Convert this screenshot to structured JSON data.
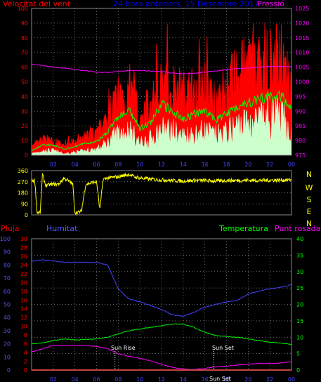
{
  "chart_data": [
    {
      "type": "line",
      "title": "24 hora anteriors, 15 Desembre 2017",
      "left_title": "Velocitat del vent",
      "right_title": "Pressió",
      "x_ticks": [
        "02",
        "04",
        "06",
        "08",
        "10",
        "12",
        "14",
        "16",
        "18",
        "20",
        "22",
        "00"
      ],
      "x_range": [
        0,
        24
      ],
      "y_left_ticks": [
        "0",
        "10",
        "20",
        "30",
        "40",
        "50",
        "60",
        "70",
        "80",
        "90",
        "100"
      ],
      "y_left_range": [
        0,
        100
      ],
      "y_right_ticks": [
        "975",
        "980",
        "985",
        "990",
        "995",
        "1000",
        "1005",
        "1010",
        "1015",
        "1020",
        "1025"
      ],
      "y_right_range": [
        975,
        1025
      ],
      "colors": {
        "gust": "#ff0000",
        "avg": "#00ff00",
        "speed": "#ccffcc",
        "pressure": "#ff00ff",
        "frame": "#888888"
      },
      "series": [
        {
          "name": "Pressió",
          "x": [
            0,
            1,
            2,
            3,
            4,
            5,
            6,
            7,
            8,
            9,
            10,
            11,
            12,
            13,
            14,
            15,
            16,
            17,
            18,
            19,
            20,
            21,
            22,
            23,
            24
          ],
          "values": [
            1006,
            1005.6,
            1005,
            1004.6,
            1004.2,
            1003.8,
            1003.3,
            1003.2,
            1003.5,
            1003.8,
            1003.8,
            1003.7,
            1003.5,
            1003,
            1002.7,
            1002.9,
            1003.3,
            1003.7,
            1004.1,
            1004.5,
            1004.7,
            1005,
            1005.2,
            1005.2,
            1005.1
          ]
        },
        {
          "name": "gust",
          "x": [
            0,
            1,
            2,
            3,
            4,
            5,
            6,
            7,
            8,
            9,
            10,
            11,
            12,
            13,
            14,
            15,
            16,
            17,
            18,
            19,
            20,
            21,
            22,
            23,
            24
          ],
          "values": [
            5,
            10,
            9,
            6,
            9,
            12,
            14,
            24,
            40,
            45,
            28,
            33,
            55,
            46,
            40,
            43,
            46,
            40,
            43,
            53,
            58,
            60,
            62,
            63,
            50
          ]
        },
        {
          "name": "avg",
          "x": [
            0,
            1,
            2,
            3,
            4,
            5,
            6,
            7,
            8,
            9,
            10,
            11,
            12,
            13,
            14,
            15,
            16,
            17,
            18,
            19,
            20,
            21,
            22,
            23,
            24
          ],
          "values": [
            3,
            7,
            7,
            4,
            6,
            8,
            9,
            16,
            26,
            30,
            18,
            22,
            35,
            30,
            25,
            28,
            30,
            24,
            28,
            33,
            36,
            38,
            40,
            40,
            33
          ]
        },
        {
          "name": "speed",
          "x": [
            0,
            1,
            2,
            3,
            4,
            5,
            6,
            7,
            8,
            9,
            10,
            11,
            12,
            13,
            14,
            15,
            16,
            17,
            18,
            19,
            20,
            21,
            22,
            23,
            24
          ],
          "values": [
            1,
            3,
            3,
            1,
            2,
            3,
            4,
            8,
            15,
            17,
            8,
            11,
            17,
            16,
            13,
            14,
            16,
            13,
            15,
            20,
            22,
            23,
            26,
            25,
            16
          ]
        }
      ]
    },
    {
      "type": "line",
      "x_ticks": [],
      "y_ticks": [
        "360",
        "270",
        "180",
        "90",
        "0"
      ],
      "y_range": [
        0,
        360
      ],
      "right_labels": [
        "N",
        "W",
        "S",
        "E",
        "N"
      ],
      "colors": {
        "dir": "#ffff00",
        "text": "#ffff00"
      },
      "series": [
        {
          "name": "direction",
          "x": [
            0,
            0.3,
            0.5,
            0.8,
            1.0,
            1.3,
            2.0,
            2.5,
            3.0,
            3.5,
            3.8,
            4.0,
            4.3,
            4.6,
            5.0,
            5.5,
            6.0,
            6.3,
            6.6,
            7.0,
            8.0,
            8.5,
            9.0,
            9.5,
            10.0,
            11.0,
            12.0,
            13.0,
            14.0,
            15.0,
            16.0,
            17.0,
            18.0,
            19.0,
            20.0,
            21.0,
            22.0,
            23.0,
            24.0
          ],
          "values": [
            280,
            280,
            20,
            20,
            330,
            240,
            250,
            250,
            300,
            270,
            250,
            20,
            20,
            30,
            250,
            260,
            270,
            40,
            290,
            300,
            310,
            320,
            330,
            310,
            300,
            290,
            285,
            280,
            275,
            280,
            280,
            275,
            280,
            280,
            282,
            280,
            282,
            283,
            285
          ]
        }
      ]
    },
    {
      "type": "line",
      "left_title": "Pluja",
      "left2_title": "Humitat",
      "right_title": "Temperatura",
      "right2_title": "Punt rosada",
      "annotations": [
        "Sun Rise",
        "Sun Set"
      ],
      "x_ticks": [
        "02",
        "04",
        "06",
        "08",
        "10",
        "12",
        "14",
        "16",
        "18",
        "20",
        "22",
        "00"
      ],
      "x_range": [
        0,
        24
      ],
      "y_rain_ticks": [
        "0",
        "10",
        "20",
        "30",
        "40",
        "50",
        "60",
        "70",
        "80",
        "90",
        "100"
      ],
      "y_hum_ticks": [
        "0",
        "2",
        "4",
        "6",
        "8",
        "10",
        "12",
        "14",
        "16",
        "18",
        "20",
        "22",
        "24",
        "26",
        "28",
        "30"
      ],
      "y_temp_ticks": [
        "0",
        "5",
        "10",
        "15",
        "20",
        "25",
        "30",
        "35",
        "40"
      ],
      "y_temp_range": [
        0,
        40
      ],
      "colors": {
        "rain": "#ff0000",
        "humidity": "#4444ff",
        "temperature": "#00ff00",
        "dewpoint": "#ff00ff",
        "rain_axis": "#5555ff",
        "hum_axis": "#ff0000",
        "temp_axis": "#00ff00",
        "white": "#ffffff"
      },
      "series": [
        {
          "name": "Humitat",
          "x": [
            0,
            1,
            2,
            3,
            4,
            5,
            6,
            7,
            8,
            9,
            10,
            11,
            12,
            13,
            14,
            15,
            16,
            17,
            18,
            19,
            20,
            21,
            22,
            23,
            24
          ],
          "values": [
            83,
            84,
            83,
            82,
            82,
            82,
            82,
            80,
            62,
            54,
            52,
            49,
            46,
            42,
            41,
            44,
            48,
            50,
            52,
            53,
            58,
            60,
            62,
            63,
            65
          ]
        },
        {
          "name": "Temperatura",
          "x": [
            0,
            1,
            2,
            3,
            4,
            5,
            6,
            7,
            8,
            9,
            10,
            11,
            12,
            13,
            14,
            15,
            16,
            17,
            18,
            19,
            20,
            21,
            22,
            23,
            24
          ],
          "values": [
            8.0,
            8.3,
            9.0,
            9.5,
            9.2,
            9.3,
            9.5,
            10.0,
            11.0,
            12.0,
            12.5,
            13.0,
            13.5,
            14.0,
            14.0,
            13.0,
            11.5,
            10.5,
            10.2,
            10.0,
            9.5,
            9.0,
            8.5,
            8.2,
            7.8
          ]
        },
        {
          "name": "Punt rosada",
          "x": [
            0,
            1,
            2,
            3,
            4,
            5,
            6,
            7,
            8,
            9,
            10,
            11,
            12,
            13,
            14,
            15,
            16,
            17,
            18,
            19,
            20,
            21,
            22,
            23,
            24
          ],
          "values": [
            5.5,
            6.5,
            7.5,
            7.5,
            7.5,
            7.5,
            7.2,
            6.5,
            5.0,
            4.2,
            3.5,
            2.8,
            1.8,
            0.8,
            0.3,
            0.2,
            0.5,
            1.0,
            1.2,
            1.5,
            1.8,
            2.0,
            2.0,
            2.2,
            2.5
          ]
        },
        {
          "name": "Pluja",
          "x": [
            0,
            24
          ],
          "values": [
            0,
            0
          ]
        }
      ]
    }
  ]
}
